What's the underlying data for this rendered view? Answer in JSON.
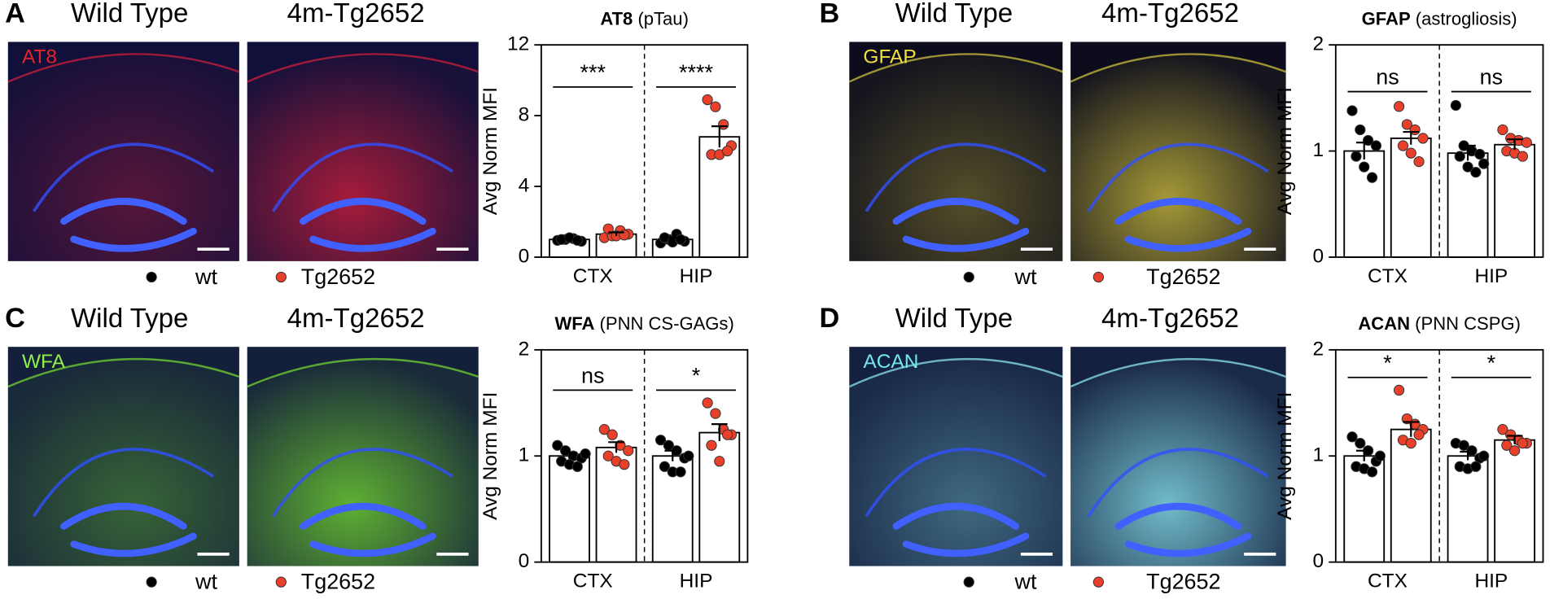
{
  "panels": [
    {
      "letter": "A",
      "image_labels": [
        "Wild Type",
        "4m-Tg2652"
      ],
      "stain": "AT8"
    },
    {
      "letter": "B",
      "image_labels": [
        "Wild Type",
        "4m-Tg2652"
      ],
      "stain": "GFAP"
    },
    {
      "letter": "C",
      "image_labels": [
        "Wild Type",
        "4m-Tg2652"
      ],
      "stain": "WFA"
    },
    {
      "letter": "D",
      "image_labels": [
        "Wild Type",
        "4m-Tg2652"
      ],
      "stain": "ACAN"
    }
  ],
  "chart_data": [
    {
      "type": "bar",
      "title": "AT8",
      "title_note": "(pTau)",
      "ylabel": "Avg Norm MFI",
      "categories": [
        "CTX",
        "HIP"
      ],
      "ylim": [
        0,
        12
      ],
      "yticks": [
        0,
        4,
        8,
        12
      ],
      "significance": [
        "***",
        "****"
      ],
      "series": [
        {
          "name": "wt",
          "color": "#000000",
          "values": [
            1.0,
            1.0
          ],
          "errors": [
            0.03,
            0.1
          ],
          "points": [
            [
              0.95,
              1.0,
              1.05,
              0.9,
              1.0,
              1.1,
              0.95
            ],
            [
              0.8,
              1.0,
              1.3,
              0.9,
              1.1,
              0.85,
              1.0
            ]
          ]
        },
        {
          "name": "Tg2652",
          "color": "#e8402a",
          "values": [
            1.3,
            6.8
          ],
          "errors": [
            0.1,
            0.6
          ],
          "points": [
            [
              1.1,
              1.2,
              1.5,
              1.3,
              1.6,
              1.2,
              1.25
            ],
            [
              8.9,
              8.5,
              7.5,
              6.3,
              5.8,
              5.8,
              6.0
            ]
          ]
        }
      ]
    },
    {
      "type": "bar",
      "title": "GFAP",
      "title_note": "(astrogliosis)",
      "ylabel": "Avg Norm MFI",
      "categories": [
        "CTX",
        "HIP"
      ],
      "ylim": [
        0,
        2
      ],
      "yticks": [
        0,
        1,
        2
      ],
      "significance": [
        "ns",
        "ns"
      ],
      "series": [
        {
          "name": "wt",
          "color": "#000000",
          "values": [
            1.0,
            0.98
          ],
          "errors": [
            0.08,
            0.07
          ],
          "points": [
            [
              1.38,
              1.2,
              1.1,
              1.05,
              0.95,
              0.85,
              0.75
            ],
            [
              1.43,
              1.05,
              1.0,
              0.97,
              0.95,
              0.85,
              0.8,
              0.88
            ]
          ]
        },
        {
          "name": "Tg2652",
          "color": "#e8402a",
          "values": [
            1.12,
            1.06
          ],
          "errors": [
            0.06,
            0.05
          ],
          "points": [
            [
              1.42,
              1.25,
              1.2,
              1.12,
              1.05,
              0.98,
              0.9
            ],
            [
              1.2,
              1.12,
              1.1,
              1.08,
              1.0,
              0.98,
              0.95
            ]
          ]
        }
      ]
    },
    {
      "type": "bar",
      "title": "WFA",
      "title_note": "(PNN CS-GAGs)",
      "ylabel": "Avg Norm MFI",
      "categories": [
        "CTX",
        "HIP"
      ],
      "ylim": [
        0,
        2
      ],
      "yticks": [
        0,
        1,
        2
      ],
      "significance": [
        "ns",
        "*"
      ],
      "series": [
        {
          "name": "wt",
          "color": "#000000",
          "values": [
            1.0,
            1.0
          ],
          "errors": [
            0.03,
            0.05
          ],
          "points": [
            [
              1.1,
              1.05,
              1.0,
              0.98,
              0.95,
              0.92,
              0.9,
              1.02
            ],
            [
              1.15,
              1.1,
              1.05,
              0.98,
              0.9,
              0.85,
              0.85,
              1.0
            ]
          ]
        },
        {
          "name": "Tg2652",
          "color": "#e8402a",
          "values": [
            1.08,
            1.22
          ],
          "errors": [
            0.05,
            0.08
          ],
          "points": [
            [
              1.25,
              1.2,
              1.1,
              1.05,
              1.0,
              0.95,
              0.92
            ],
            [
              1.5,
              1.4,
              1.25,
              1.2,
              1.1,
              0.95,
              1.2
            ]
          ]
        }
      ]
    },
    {
      "type": "bar",
      "title": "ACAN",
      "title_note": "(PNN CSPG)",
      "ylabel": "Avg Norm MFI",
      "categories": [
        "CTX",
        "HIP"
      ],
      "ylim": [
        0,
        2
      ],
      "yticks": [
        0,
        1,
        2
      ],
      "significance": [
        "*",
        "*"
      ],
      "series": [
        {
          "name": "wt",
          "color": "#000000",
          "values": [
            1.0,
            1.0
          ],
          "errors": [
            0.05,
            0.04
          ],
          "points": [
            [
              1.18,
              1.12,
              1.05,
              0.95,
              0.9,
              0.88,
              0.85,
              1.0
            ],
            [
              1.12,
              1.1,
              1.05,
              0.98,
              0.9,
              0.88,
              0.9,
              1.0
            ]
          ]
        },
        {
          "name": "Tg2652",
          "color": "#e8402a",
          "values": [
            1.25,
            1.15
          ],
          "errors": [
            0.07,
            0.04
          ],
          "points": [
            [
              1.62,
              1.35,
              1.3,
              1.25,
              1.15,
              1.12,
              1.2
            ],
            [
              1.25,
              1.2,
              1.15,
              1.12,
              1.1,
              1.05,
              1.12
            ]
          ]
        }
      ]
    }
  ]
}
